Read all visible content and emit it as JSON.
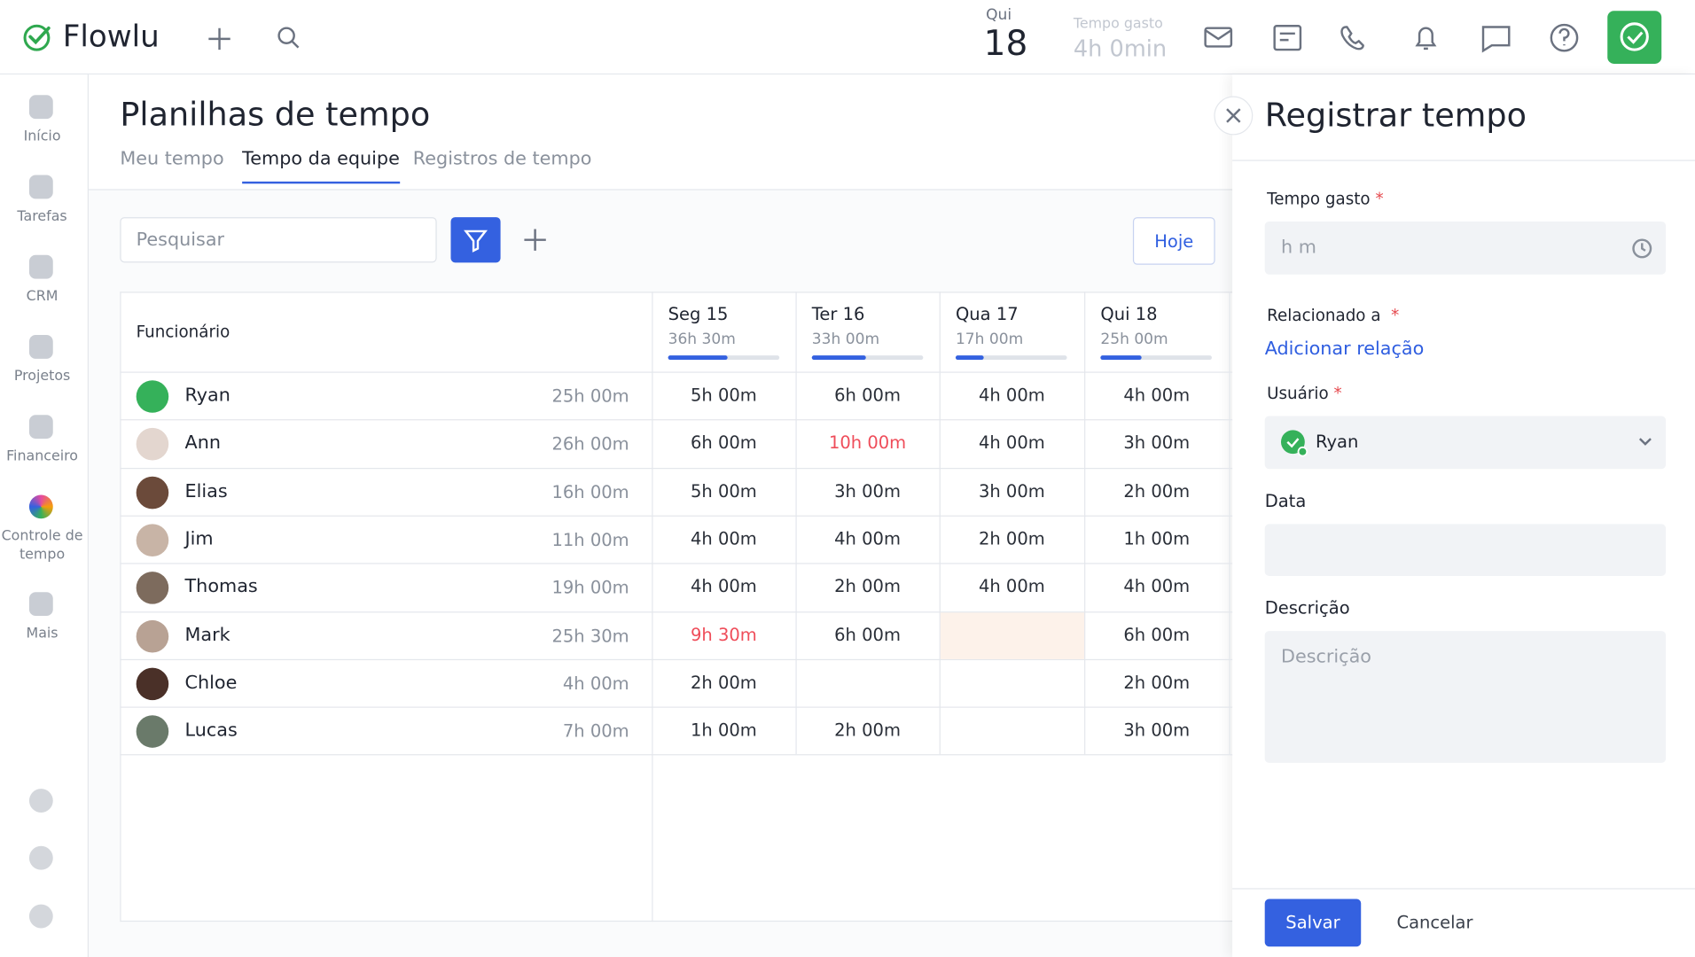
{
  "header": {
    "logo": "Flowlu",
    "day": "Qui",
    "date": "18",
    "time_label": "Tempo gasto",
    "time_value": "4h 0min"
  },
  "sidebar": [
    "Início",
    "Tarefas",
    "CRM",
    "Projetos",
    "Financeiro",
    "Controle de tempo",
    "Mais"
  ],
  "page": {
    "title": "Planilhas de tempo",
    "tabs": [
      "Meu tempo",
      "Tempo da equipe",
      "Registros de tempo"
    ],
    "search_placeholder": "Pesquisar",
    "today": "Hoje"
  },
  "table": {
    "employee_header": "Funcionário",
    "days": [
      {
        "name": "Seg 15",
        "total": "36h 30m"
      },
      {
        "name": "Ter 16",
        "total": "33h 00m"
      },
      {
        "name": "Qua 17",
        "total": "17h 00m"
      },
      {
        "name": "Qui 18",
        "total": "25h 00m"
      }
    ],
    "rows": [
      {
        "name": "Ryan",
        "total": "25h 00m",
        "cells": [
          "5h 00m",
          "6h 00m",
          "4h 00m",
          "4h 00m"
        ]
      },
      {
        "name": "Ann",
        "total": "26h 00m",
        "cells": [
          "6h 00m",
          "10h 00m",
          "4h 00m",
          "3h 00m"
        ]
      },
      {
        "name": "Elias",
        "total": "16h 00m",
        "cells": [
          "5h 00m",
          "3h 00m",
          "3h 00m",
          "2h 00m"
        ]
      },
      {
        "name": "Jim",
        "total": "11h 00m",
        "cells": [
          "4h 00m",
          "4h 00m",
          "2h 00m",
          "1h 00m"
        ]
      },
      {
        "name": "Thomas",
        "total": "19h 00m",
        "cells": [
          "4h 00m",
          "2h 00m",
          "4h 00m",
          "4h 00m"
        ]
      },
      {
        "name": "Mark",
        "total": "25h 30m",
        "cells": [
          "9h 30m",
          "6h 00m",
          null,
          "6h 00m"
        ]
      },
      {
        "name": "Chloe",
        "total": "4h 00m",
        "cells": [
          "2h 00m",
          null,
          null,
          "2h 00m"
        ]
      },
      {
        "name": "Lucas",
        "total": "7h 00m",
        "cells": [
          "1h 00m",
          "2h 00m",
          null,
          "3h 00m"
        ]
      }
    ]
  },
  "panel": {
    "title": "Registrar tempo",
    "time_label": "Tempo gasto",
    "time_placeholder": "h m",
    "related_label": "Relacionado a",
    "related_link": "Adicionar relação",
    "user_label": "Usuário",
    "user_value": "Ryan",
    "date_label": "Data",
    "description_label": "Descrição",
    "description_placeholder": "Descrição",
    "save": "Salvar",
    "cancel": "Cancelar"
  }
}
